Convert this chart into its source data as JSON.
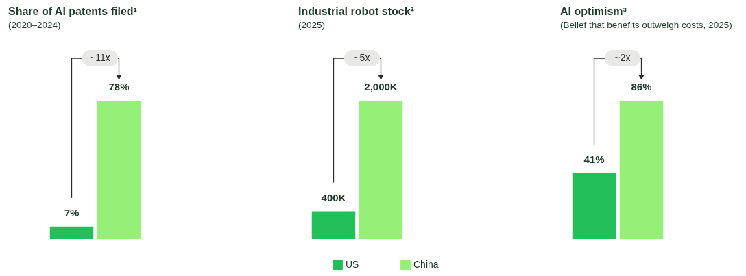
{
  "chart_data": [
    {
      "type": "bar",
      "title": "Share of AI patents filed¹",
      "subtitle": "(2020–2024)",
      "categories": [
        null
      ],
      "annotations": [
        "~11x"
      ],
      "series": [
        {
          "color": "#22bf5a",
          "values": [
            7
          ],
          "value_labels": [
            "7%"
          ]
        },
        {
          "color": "#96f077",
          "values": [
            78
          ],
          "value_labels": [
            "78%"
          ]
        }
      ]
    },
    {
      "type": "bar",
      "title": "Industrial robot stock²",
      "subtitle": "(2025)",
      "categories": [
        null
      ],
      "annotations": [
        "~5x"
      ],
      "legend": "bottom",
      "series": [
        {
          "name": "US",
          "color": "#22bf5a",
          "values": [
            400
          ],
          "value_labels": [
            "400K"
          ]
        },
        {
          "name": "China",
          "color": "#96f077",
          "values": [
            2000
          ],
          "value_labels": [
            "2,000K"
          ]
        }
      ]
    },
    {
      "type": "bar",
      "title": "AI optimism³",
      "subtitle": "(Belief that benefits outweigh costs, 2025)",
      "categories": [
        null
      ],
      "annotations": [
        "~2x"
      ],
      "series": [
        {
          "color": "#22bf5a",
          "values": [
            41
          ],
          "value_labels": [
            "41%"
          ]
        },
        {
          "color": "#96f077",
          "values": [
            86
          ],
          "value_labels": [
            "86%"
          ]
        }
      ]
    }
  ]
}
